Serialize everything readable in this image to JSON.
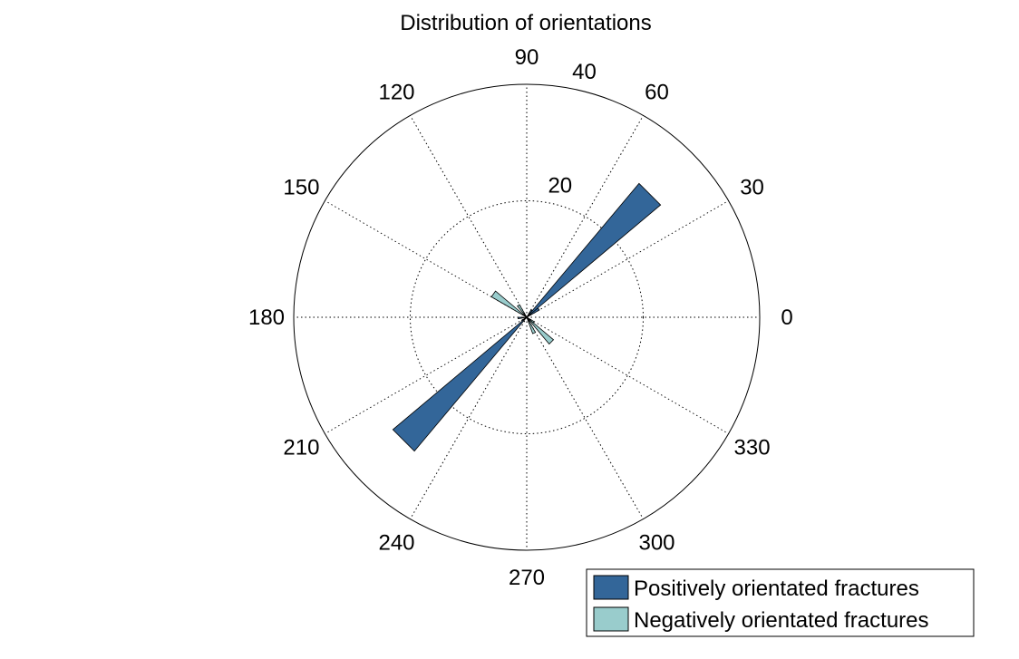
{
  "chart_data": {
    "type": "polar-rose",
    "title": "Distribution of orientations",
    "angular_ticks": [
      "0",
      "30",
      "60",
      "90",
      "120",
      "150",
      "180",
      "210",
      "240",
      "270",
      "300",
      "330"
    ],
    "angular_tick_degrees": [
      0,
      30,
      60,
      90,
      120,
      150,
      180,
      210,
      240,
      270,
      300,
      330
    ],
    "radial_ticks": [
      "20",
      "40"
    ],
    "radial_tick_values": [
      20,
      40
    ],
    "r_max": 40,
    "radial_label_angle_deg": 78,
    "grid": true,
    "legend_position": "bottom-right",
    "bin_width_deg": 10,
    "series": [
      {
        "name": "Positively orientated fractures",
        "color": "#336699",
        "bins": [
          {
            "start_deg": 30,
            "end_deg": 40,
            "value": 2.5
          },
          {
            "start_deg": 40,
            "end_deg": 50,
            "value": 30
          },
          {
            "start_deg": 50,
            "end_deg": 60,
            "value": 1.5
          },
          {
            "start_deg": 180,
            "end_deg": 190,
            "value": 1.5
          },
          {
            "start_deg": 210,
            "end_deg": 220,
            "value": 1
          },
          {
            "start_deg": 220,
            "end_deg": 230,
            "value": 30
          }
        ]
      },
      {
        "name": "Negatively orientated fractures",
        "color": "#99cccc",
        "bins": [
          {
            "start_deg": 120,
            "end_deg": 130,
            "value": 2.5
          },
          {
            "start_deg": 140,
            "end_deg": 150,
            "value": 7
          },
          {
            "start_deg": 290,
            "end_deg": 300,
            "value": 3
          },
          {
            "start_deg": 310,
            "end_deg": 320,
            "value": 6
          },
          {
            "start_deg": 320,
            "end_deg": 330,
            "value": 1.5
          }
        ]
      }
    ]
  }
}
